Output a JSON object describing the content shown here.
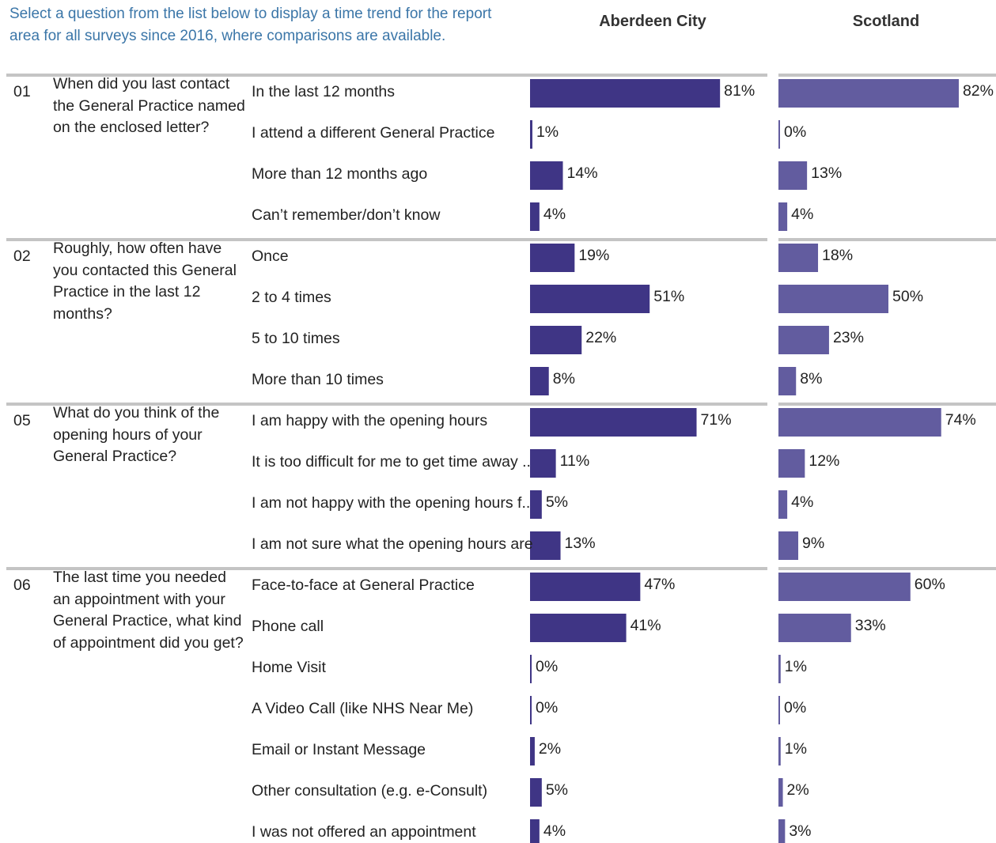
{
  "intro_text": "Select a question from the list below to display a time trend for the report area for all surveys since 2016, where comparisons are available.",
  "colors": {
    "aberdeen_bar": "#3f3585",
    "scotland_bar": "#625c9f",
    "separator": "#c4c4c4",
    "intro_text": "#3b76a8"
  },
  "chart_data": {
    "type": "bar",
    "orientation": "horizontal",
    "series": [
      {
        "name": "Aberdeen City"
      },
      {
        "name": "Scotland"
      }
    ],
    "unit": "%",
    "xlim": [
      0,
      100
    ],
    "grid": false,
    "legend": "top",
    "questions": [
      {
        "number": "01",
        "text": "When did you last contact the General Practice named on the enclosed letter?",
        "answers": [
          {
            "label": "In the last 12 months",
            "values": [
              81,
              82
            ],
            "display": [
              "81%",
              "82%"
            ]
          },
          {
            "label": "I attend a different General Practice",
            "values": [
              1,
              0
            ],
            "display": [
              "1%",
              "0%"
            ]
          },
          {
            "label": "More than 12 months ago",
            "values": [
              14,
              13
            ],
            "display": [
              "14%",
              "13%"
            ]
          },
          {
            "label": "Can’t remember/don’t know",
            "values": [
              4,
              4
            ],
            "display": [
              "4%",
              "4%"
            ]
          }
        ]
      },
      {
        "number": "02",
        "text": "Roughly, how often have you contacted this General Practice in the last 12 months?",
        "answers": [
          {
            "label": "Once",
            "values": [
              19,
              18
            ],
            "display": [
              "19%",
              "18%"
            ]
          },
          {
            "label": "2 to 4 times",
            "values": [
              51,
              50
            ],
            "display": [
              "51%",
              "50%"
            ]
          },
          {
            "label": "5 to 10 times",
            "values": [
              22,
              23
            ],
            "display": [
              "22%",
              "23%"
            ]
          },
          {
            "label": "More than 10 times",
            "values": [
              8,
              8
            ],
            "display": [
              "8%",
              "8%"
            ]
          }
        ]
      },
      {
        "number": "05",
        "text": "What do you think of the opening hours of your General Practice?",
        "answers": [
          {
            "label": "I am happy with the opening hours",
            "values": [
              71,
              74
            ],
            "display": [
              "71%",
              "74%"
            ]
          },
          {
            "label": "It is too difficult for me to get time away ..",
            "values": [
              11,
              12
            ],
            "display": [
              "11%",
              "12%"
            ]
          },
          {
            "label": "I am not happy with the opening hours f..",
            "values": [
              5,
              4
            ],
            "display": [
              "5%",
              "4%"
            ]
          },
          {
            "label": "I am not sure what the opening hours are",
            "values": [
              13,
              9
            ],
            "display": [
              "13%",
              "9%"
            ]
          }
        ]
      },
      {
        "number": "06",
        "text": "The last time you needed an appointment with your General Practice, what kind of appointment did you get?",
        "answers": [
          {
            "label": "Face-to-face at General Practice",
            "values": [
              47,
              60
            ],
            "display": [
              "47%",
              "60%"
            ]
          },
          {
            "label": "Phone call",
            "values": [
              41,
              33
            ],
            "display": [
              "41%",
              "33%"
            ]
          },
          {
            "label": "Home Visit",
            "values": [
              0,
              1
            ],
            "display": [
              "0%",
              "1%"
            ]
          },
          {
            "label": "A Video Call (like NHS Near Me)",
            "values": [
              0,
              0
            ],
            "display": [
              "0%",
              "0%"
            ]
          },
          {
            "label": "Email or Instant Message",
            "values": [
              2,
              1
            ],
            "display": [
              "2%",
              "1%"
            ]
          },
          {
            "label": "Other consultation (e.g. e-Consult)",
            "values": [
              5,
              2
            ],
            "display": [
              "5%",
              "2%"
            ]
          },
          {
            "label": "I was not offered an appointment",
            "values": [
              4,
              3
            ],
            "display": [
              "4%",
              "3%"
            ]
          }
        ]
      }
    ]
  }
}
